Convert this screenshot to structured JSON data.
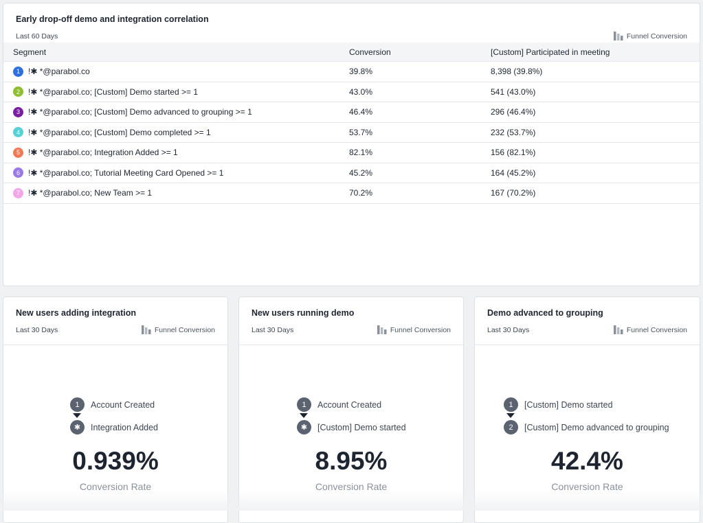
{
  "main_card": {
    "title": "Early drop-off demo and integration correlation",
    "subtitle": "Last 60 Days",
    "chart_type": "Funnel Conversion",
    "columns": [
      "Segment",
      "Conversion",
      "[Custom] Participated in meeting"
    ],
    "rows": [
      {
        "num": "1",
        "color": "#2f6fde",
        "segment": "!✱ *@parabol.co",
        "conversion": "39.8%",
        "participated": "8,398 (39.8%)"
      },
      {
        "num": "2",
        "color": "#8dbf2f",
        "segment": "!✱ *@parabol.co; [Custom] Demo started >= 1",
        "conversion": "43.0%",
        "participated": "541 (43.0%)"
      },
      {
        "num": "3",
        "color": "#7a1fa2",
        "segment": "!✱ *@parabol.co; [Custom] Demo advanced to grouping >= 1",
        "conversion": "46.4%",
        "participated": "296 (46.4%)"
      },
      {
        "num": "4",
        "color": "#5ad0d6",
        "segment": "!✱ *@parabol.co; [Custom] Demo completed >= 1",
        "conversion": "53.7%",
        "participated": "232 (53.7%)"
      },
      {
        "num": "5",
        "color": "#f07a55",
        "segment": "!✱ *@parabol.co; Integration Added >= 1",
        "conversion": "82.1%",
        "participated": "156 (82.1%)"
      },
      {
        "num": "6",
        "color": "#9b78e8",
        "segment": "!✱ *@parabol.co; Tutorial Meeting Card Opened >= 1",
        "conversion": "45.2%",
        "participated": "164 (45.2%)"
      },
      {
        "num": "7",
        "color": "#f2a7e8",
        "segment": "!✱ *@parabol.co; New Team >= 1",
        "conversion": "70.2%",
        "participated": "167 (70.2%)"
      }
    ]
  },
  "cards": [
    {
      "title": "New users adding integration",
      "subtitle": "Last 30 Days",
      "chart_type": "Funnel Conversion",
      "step1_marker": "1",
      "step1_label": "Account Created",
      "step2_marker": "✱",
      "step2_label": "Integration Added",
      "rate": "0.939%",
      "rate_label": "Conversion Rate"
    },
    {
      "title": "New users running demo",
      "subtitle": "Last 30 Days",
      "chart_type": "Funnel Conversion",
      "step1_marker": "1",
      "step1_label": "Account Created",
      "step2_marker": "✱",
      "step2_label": "[Custom] Demo started",
      "rate": "8.95%",
      "rate_label": "Conversion Rate"
    },
    {
      "title": "Demo advanced to grouping",
      "subtitle": "Last 30 Days",
      "chart_type": "Funnel Conversion",
      "step1_marker": "1",
      "step1_label": "[Custom] Demo started",
      "step2_marker": "2",
      "step2_label": "[Custom] Demo advanced to grouping",
      "rate": "42.4%",
      "rate_label": "Conversion Rate"
    }
  ]
}
